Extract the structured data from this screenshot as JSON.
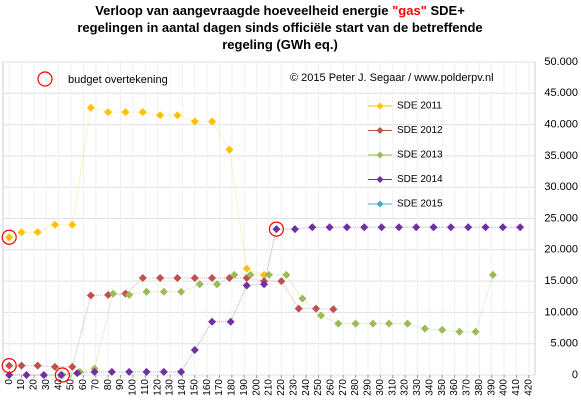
{
  "chart_data": {
    "type": "line",
    "title_lines": [
      [
        "Verloop van aangevraagde hoeveelheid energie ",
        "\"gas\"",
        " SDE+"
      ],
      [
        "regelingen in aantal dagen sinds officiële start van de betreffende"
      ],
      [
        "regeling (GWh eq.)"
      ]
    ],
    "title_highlight_color": "#ff0000",
    "annotation_budget": "budget overtekening",
    "annotation_copyright": "© 2015 Peter J. Segaar / www.polderpv.nl",
    "budget_color": "#ff0000",
    "budget_points": {
      "x": [
        0,
        0,
        43,
        216
      ],
      "y": [
        22000,
        1500,
        0,
        23300
      ]
    },
    "xlim": [
      -5,
      425
    ],
    "xticks": [
      0,
      10,
      20,
      30,
      40,
      50,
      60,
      70,
      80,
      90,
      100,
      110,
      120,
      130,
      140,
      150,
      160,
      170,
      180,
      190,
      200,
      210,
      220,
      230,
      240,
      250,
      260,
      270,
      280,
      290,
      300,
      310,
      320,
      330,
      340,
      350,
      360,
      370,
      380,
      390,
      400,
      410,
      420
    ],
    "ylim": [
      0,
      50000
    ],
    "yticks": [
      0,
      {
        "value": 5000,
        "label": "5.000"
      },
      {
        "value": 10000,
        "label": "10.000"
      },
      {
        "value": 15000,
        "label": "15.000"
      },
      {
        "value": 20000,
        "label": "20.000"
      },
      {
        "value": 25000,
        "label": "25.000"
      },
      {
        "value": 30000,
        "label": "30.000"
      },
      {
        "value": 35000,
        "label": "35.000"
      },
      {
        "value": 40000,
        "label": "40.000"
      },
      {
        "value": 45000,
        "label": "45.000"
      },
      {
        "value": 50000,
        "label": "50.000"
      }
    ],
    "grid": true,
    "series": [
      {
        "name": "SDE 2011",
        "color": "#ffc000",
        "x": [
          0,
          10,
          23,
          37,
          51,
          66,
          80,
          94,
          108,
          122,
          136,
          150,
          164,
          178,
          192,
          206
        ],
        "values": [
          22000,
          22800,
          22800,
          24000,
          24000,
          42700,
          42000,
          42000,
          42000,
          41500,
          41500,
          40500,
          40500,
          36000,
          17000,
          16000
        ]
      },
      {
        "name": "SDE 2012",
        "color": "#c0504d",
        "x": [
          0,
          10,
          23,
          37,
          51,
          66,
          80,
          94,
          108,
          122,
          136,
          150,
          164,
          178,
          192,
          206,
          220,
          234,
          248,
          262
        ],
        "values": [
          1500,
          1500,
          1500,
          1300,
          1300,
          12700,
          12800,
          13000,
          15500,
          15500,
          15500,
          15500,
          15500,
          15500,
          15500,
          15000,
          15000,
          10600,
          10600,
          10500
        ]
      },
      {
        "name": "SDE 2013",
        "color": "#9bbb59",
        "x": [
          43,
          57,
          69,
          84,
          97,
          111,
          125,
          139,
          154,
          168,
          182,
          195,
          210,
          224,
          237,
          252,
          266,
          280,
          294,
          307,
          322,
          336,
          350,
          364,
          377,
          391
        ],
        "values": [
          0,
          500,
          1000,
          13000,
          12800,
          13300,
          13300,
          13300,
          14500,
          14500,
          16000,
          16000,
          16000,
          16000,
          12200,
          9500,
          8200,
          8200,
          8200,
          8200,
          8200,
          7400,
          7200,
          6900,
          6900,
          16000
        ]
      },
      {
        "name": "SDE 2014",
        "color": "#7030a0",
        "x": [
          0,
          14,
          28,
          42,
          55,
          69,
          83,
          97,
          111,
          125,
          139,
          150,
          164,
          179,
          192,
          206,
          216,
          231,
          245,
          259,
          273,
          287,
          301,
          315,
          329,
          343,
          357,
          371,
          385,
          399,
          413
        ],
        "values": [
          0,
          0,
          0,
          0,
          300,
          500,
          500,
          500,
          500,
          500,
          500,
          4000,
          8500,
          8500,
          14300,
          14500,
          23300,
          23300,
          23600,
          23600,
          23600,
          23600,
          23600,
          23600,
          23600,
          23600,
          23600,
          23600,
          23600,
          23600,
          23600
        ]
      },
      {
        "name": "SDE 2015",
        "color": "#4bacc6",
        "x": [],
        "values": []
      }
    ]
  }
}
